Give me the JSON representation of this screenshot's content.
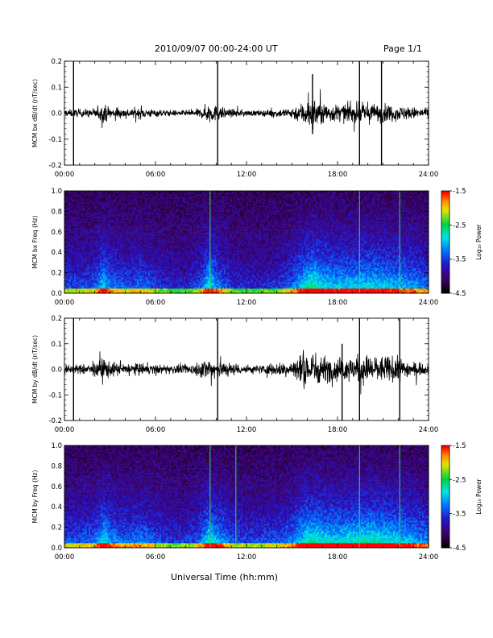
{
  "header": {
    "title": "2010/09/07  00:00-24:00 UT",
    "page": "Page 1/1"
  },
  "x_axis": {
    "label": "Universal Time (hh:mm)",
    "ticks": [
      "00:00",
      "06:00",
      "12:00",
      "18:00",
      "24:00"
    ],
    "range_hours": [
      0,
      24
    ]
  },
  "colorbar": {
    "label": "Log₁₀ Power",
    "ticks": [
      "-1.5",
      "-2.5",
      "-3.5",
      "-4.5"
    ],
    "range": [
      -4.5,
      -1.5
    ],
    "colormap": "rainbow (black-purple-blue-cyan-green-yellow-orange-red)"
  },
  "chart_data": [
    {
      "type": "line",
      "panel": "bx-dbdt",
      "ylabel": "MCM bx dB/dt (nT/sec)",
      "ylim": [
        -0.2,
        0.2
      ],
      "yticks": [
        "-0.2",
        "-0.1",
        "0.0",
        "0.1",
        "0.2"
      ],
      "xlim_hours": [
        0,
        24
      ],
      "series_color": "#000000",
      "activity_envelope": {
        "x_hours": [
          0,
          1,
          2,
          2.6,
          3,
          4,
          5,
          6,
          7,
          8,
          9,
          9.5,
          10,
          11,
          12,
          13,
          14,
          15,
          15.5,
          16,
          16.5,
          17,
          18,
          19,
          20,
          21,
          22,
          23,
          24
        ],
        "amplitude": [
          0.025,
          0.025,
          0.03,
          0.06,
          0.04,
          0.03,
          0.035,
          0.025,
          0.02,
          0.018,
          0.03,
          0.07,
          0.05,
          0.025,
          0.02,
          0.02,
          0.025,
          0.04,
          0.06,
          0.1,
          0.11,
          0.07,
          0.055,
          0.06,
          0.065,
          0.06,
          0.05,
          0.04,
          0.03
        ]
      },
      "spikes": [
        {
          "t_hours": 0.6,
          "min": -0.22,
          "max": 0.22
        },
        {
          "t_hours": 10.1,
          "min": -0.2,
          "max": 0.2
        },
        {
          "t_hours": 16.35,
          "min": -0.08,
          "max": 0.15
        },
        {
          "t_hours": 19.45,
          "min": -0.22,
          "max": 0.22
        },
        {
          "t_hours": 20.9,
          "min": -0.22,
          "max": 0.22
        }
      ]
    },
    {
      "type": "heatmap",
      "panel": "bx-freq",
      "ylabel": "MCM bx Freq (Hz)",
      "ylim": [
        0.0,
        1.0
      ],
      "yticks": [
        "0.0",
        "0.2",
        "0.4",
        "0.6",
        "0.8",
        "1.0"
      ],
      "xlim_hours": [
        0,
        24
      ],
      "zlim": [
        -4.5,
        -1.5
      ],
      "activity_envelope": {
        "x_hours": [
          0,
          1,
          2,
          2.6,
          3,
          4,
          5,
          6,
          7,
          8,
          9,
          9.5,
          10,
          11,
          12,
          13,
          14,
          15,
          15.5,
          16,
          16.5,
          17,
          18,
          19,
          20,
          21,
          22,
          23,
          24
        ],
        "level": [
          0.4,
          0.4,
          0.45,
          0.75,
          0.55,
          0.45,
          0.5,
          0.4,
          0.3,
          0.28,
          0.45,
          0.8,
          0.6,
          0.35,
          0.3,
          0.3,
          0.35,
          0.5,
          0.65,
          0.85,
          0.9,
          0.75,
          0.7,
          0.72,
          0.75,
          0.72,
          0.68,
          0.6,
          0.5
        ]
      },
      "vertical_lines": [
        {
          "t_hours": 9.6
        },
        {
          "t_hours": 19.45
        },
        {
          "t_hours": 22.1
        }
      ]
    },
    {
      "type": "line",
      "panel": "by-dbdt",
      "ylabel": "MCM by dB/dt (nT/sec)",
      "ylim": [
        -0.2,
        0.2
      ],
      "yticks": [
        "-0.2",
        "-0.1",
        "0.0",
        "0.1",
        "0.2"
      ],
      "xlim_hours": [
        0,
        24
      ],
      "series_color": "#000000",
      "activity_envelope": {
        "x_hours": [
          0,
          1,
          2,
          2.6,
          3,
          4,
          5,
          6,
          7,
          8,
          9,
          9.5,
          10,
          11,
          12,
          13,
          14,
          15,
          15.5,
          16,
          16.5,
          17,
          18,
          19,
          20,
          21,
          22,
          23,
          24
        ],
        "amplitude": [
          0.03,
          0.03,
          0.04,
          0.09,
          0.05,
          0.04,
          0.04,
          0.03,
          0.03,
          0.03,
          0.05,
          0.09,
          0.08,
          0.04,
          0.03,
          0.03,
          0.04,
          0.06,
          0.1,
          0.13,
          0.12,
          0.09,
          0.08,
          0.09,
          0.1,
          0.09,
          0.08,
          0.05,
          0.03
        ]
      },
      "spikes": [
        {
          "t_hours": 0.6,
          "min": -0.22,
          "max": 0.22
        },
        {
          "t_hours": 10.1,
          "min": -0.2,
          "max": 0.2
        },
        {
          "t_hours": 18.3,
          "min": -0.22,
          "max": 0.1
        },
        {
          "t_hours": 19.45,
          "min": -0.22,
          "max": 0.22
        },
        {
          "t_hours": 22.1,
          "min": -0.22,
          "max": 0.22
        }
      ]
    },
    {
      "type": "heatmap",
      "panel": "by-freq",
      "ylabel": "MCM by Freq (Hz)",
      "ylim": [
        0.0,
        1.0
      ],
      "yticks": [
        "0.0",
        "0.2",
        "0.4",
        "0.6",
        "0.8",
        "1.0"
      ],
      "xlim_hours": [
        0,
        24
      ],
      "zlim": [
        -4.5,
        -1.5
      ],
      "activity_envelope": {
        "x_hours": [
          0,
          1,
          2,
          2.6,
          3,
          4,
          5,
          6,
          7,
          8,
          9,
          9.5,
          10,
          11,
          12,
          13,
          14,
          15,
          15.5,
          16,
          16.5,
          17,
          18,
          19,
          20,
          21,
          22,
          23,
          24
        ],
        "level": [
          0.45,
          0.45,
          0.5,
          0.8,
          0.6,
          0.5,
          0.55,
          0.45,
          0.35,
          0.35,
          0.5,
          0.8,
          0.7,
          0.45,
          0.4,
          0.4,
          0.45,
          0.55,
          0.7,
          0.85,
          0.85,
          0.8,
          0.75,
          0.8,
          0.85,
          0.8,
          0.75,
          0.65,
          0.55
        ]
      },
      "vertical_lines": [
        {
          "t_hours": 9.6
        },
        {
          "t_hours": 11.3
        },
        {
          "t_hours": 19.45
        },
        {
          "t_hours": 22.1
        }
      ]
    }
  ]
}
